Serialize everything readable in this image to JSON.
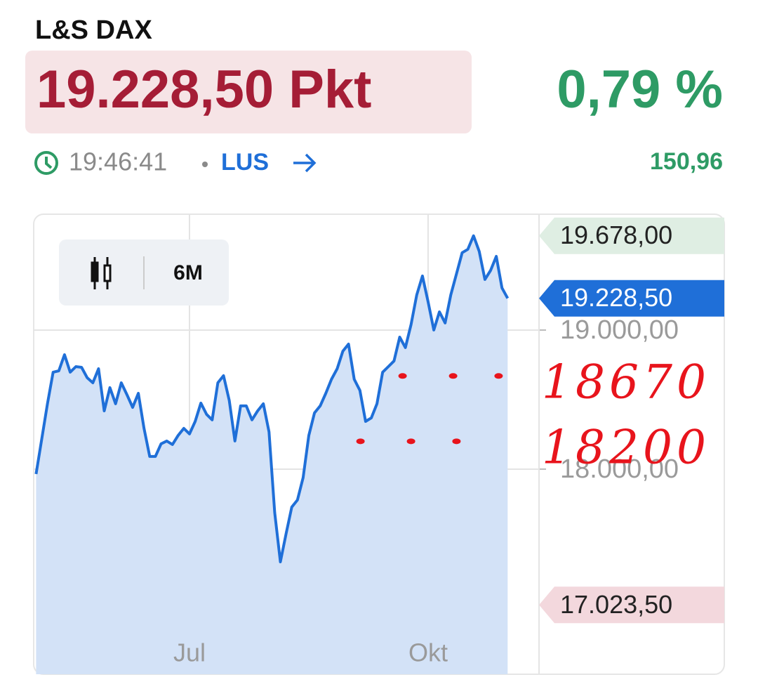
{
  "header": {
    "title": "L&S DAX",
    "price": "19.228,50 Pkt",
    "change_pct": "0,79 %",
    "time": "19:46:41",
    "exchange": "LUS",
    "change_abs": "150,96"
  },
  "controls": {
    "range": "6M"
  },
  "chart_data": {
    "type": "line",
    "categories": [
      null,
      null,
      null,
      null,
      null,
      null,
      null,
      null,
      null,
      null,
      null,
      null,
      null,
      null,
      null,
      null,
      null,
      null,
      null,
      null,
      null,
      null,
      null,
      null,
      null,
      null,
      null,
      "Jul",
      null,
      null,
      null,
      null,
      null,
      null,
      null,
      null,
      null,
      null,
      null,
      null,
      null,
      null,
      null,
      null,
      null,
      null,
      null,
      null,
      null,
      null,
      null,
      null,
      null,
      null,
      null,
      null,
      null,
      null,
      null,
      null,
      null,
      null,
      null,
      null,
      null,
      null,
      null,
      null,
      null,
      "Okt",
      null,
      null,
      null,
      null,
      null,
      null,
      null,
      null,
      null,
      null,
      null,
      null,
      null,
      null
    ],
    "series": [
      {
        "name": "L&S DAX",
        "color": "#1f6fd8",
        "values": [
          17965,
          18217,
          18470,
          18697,
          18707,
          18823,
          18697,
          18737,
          18732,
          18657,
          18621,
          18722,
          18419,
          18586,
          18470,
          18621,
          18535,
          18444,
          18545,
          18293,
          18091,
          18091,
          18182,
          18202,
          18177,
          18242,
          18293,
          18253,
          18343,
          18475,
          18394,
          18354,
          18621,
          18672,
          18495,
          18202,
          18455,
          18455,
          18354,
          18419,
          18470,
          18268,
          17687,
          17333,
          17535,
          17727,
          17778,
          17939,
          18242,
          18404,
          18455,
          18545,
          18646,
          18722,
          18848,
          18899,
          18646,
          18566,
          18343,
          18368,
          18470,
          18697,
          18737,
          18778,
          18949,
          18874,
          19040,
          19253,
          19389,
          19202,
          19000,
          19131,
          19051,
          19253,
          19404,
          19556,
          19581,
          19678,
          19566,
          19364,
          19429,
          19530,
          19303,
          19228.5
        ]
      }
    ],
    "ylim": [
      16525,
      19833
    ],
    "yticks": [
      {
        "value": 19000,
        "label": "19.000,00"
      },
      {
        "value": 18000,
        "label": "18.000,00"
      }
    ],
    "grid": true,
    "high": {
      "value": 19678,
      "label": "19.678,00",
      "color": "#dfeee3"
    },
    "last": {
      "value": 19228.5,
      "label": "19.228,50",
      "color": "#1f6fd8"
    },
    "low": {
      "value": 17023.5,
      "label": "17.023,50",
      "color": "#f3d8dd"
    },
    "annotations": [
      {
        "value": 18670,
        "label": "18670",
        "color": "#e8141c"
      },
      {
        "value": 18200,
        "label": "18200",
        "color": "#e8141c"
      }
    ]
  }
}
